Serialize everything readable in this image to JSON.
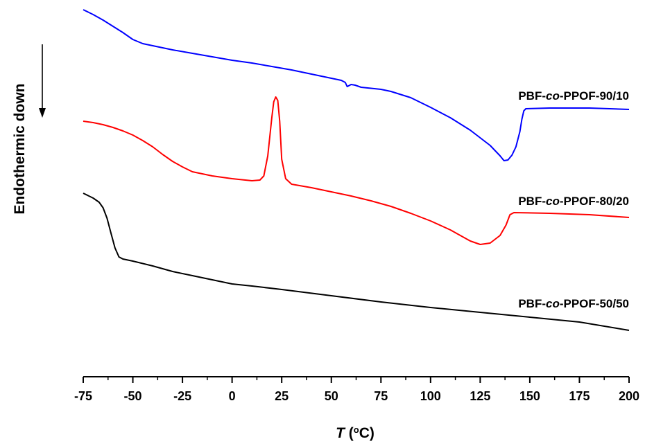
{
  "chart_data": {
    "type": "line",
    "xlabel": {
      "symbol": "T",
      "unit_open": " (",
      "unit_degree": "o",
      "unit_close": "C)"
    },
    "ylabel": "Endothermic down",
    "xlim": [
      -75,
      200
    ],
    "xticks": [
      "-75",
      "-50",
      "-25",
      "0",
      "25",
      "50",
      "75",
      "100",
      "125",
      "150",
      "175",
      "200"
    ],
    "yticks_shown": false,
    "grid": false,
    "series": [
      {
        "name": "PBF-co-PPOF-90/10",
        "label_parts": [
          "PBF-",
          "co",
          "-PPOF-90/10"
        ],
        "color": "#0000ff",
        "points": [
          [
            -75,
            14
          ],
          [
            -70,
            21
          ],
          [
            -65,
            29
          ],
          [
            -60,
            38
          ],
          [
            -55,
            47
          ],
          [
            -50,
            57
          ],
          [
            -45,
            63
          ],
          [
            -40,
            66
          ],
          [
            -30,
            72
          ],
          [
            -20,
            77
          ],
          [
            -10,
            82
          ],
          [
            0,
            87
          ],
          [
            10,
            91
          ],
          [
            20,
            96
          ],
          [
            30,
            101
          ],
          [
            40,
            107
          ],
          [
            50,
            113
          ],
          [
            55,
            116
          ],
          [
            57,
            119
          ],
          [
            58,
            125
          ],
          [
            60,
            122
          ],
          [
            62,
            123
          ],
          [
            65,
            126
          ],
          [
            75,
            129
          ],
          [
            80,
            132
          ],
          [
            90,
            141
          ],
          [
            100,
            155
          ],
          [
            110,
            170
          ],
          [
            120,
            188
          ],
          [
            130,
            210
          ],
          [
            135,
            225
          ],
          [
            137,
            232
          ],
          [
            139,
            231
          ],
          [
            141,
            224
          ],
          [
            143,
            212
          ],
          [
            145,
            190
          ],
          [
            146,
            172
          ],
          [
            147,
            160
          ],
          [
            148,
            157
          ],
          [
            160,
            156
          ],
          [
            180,
            156
          ],
          [
            200,
            158
          ]
        ]
      },
      {
        "name": "PBF-co-PPOF-80/20",
        "label_parts": [
          "PBF-",
          "co",
          "-PPOF-80/20"
        ],
        "color": "#ff0000",
        "points": [
          [
            -75,
            175
          ],
          [
            -70,
            177
          ],
          [
            -65,
            180
          ],
          [
            -60,
            184
          ],
          [
            -55,
            189
          ],
          [
            -50,
            195
          ],
          [
            -45,
            203
          ],
          [
            -40,
            212
          ],
          [
            -35,
            223
          ],
          [
            -30,
            233
          ],
          [
            -25,
            241
          ],
          [
            -20,
            248
          ],
          [
            -15,
            251
          ],
          [
            -10,
            254
          ],
          [
            0,
            258
          ],
          [
            10,
            261
          ],
          [
            14,
            260
          ],
          [
            16,
            254
          ],
          [
            18,
            225
          ],
          [
            20,
            170
          ],
          [
            21,
            147
          ],
          [
            22,
            140
          ],
          [
            23,
            145
          ],
          [
            24,
            175
          ],
          [
            25,
            230
          ],
          [
            27,
            258
          ],
          [
            30,
            266
          ],
          [
            40,
            271
          ],
          [
            50,
            277
          ],
          [
            60,
            283
          ],
          [
            70,
            290
          ],
          [
            80,
            298
          ],
          [
            90,
            308
          ],
          [
            100,
            319
          ],
          [
            110,
            332
          ],
          [
            115,
            340
          ],
          [
            120,
            348
          ],
          [
            125,
            353
          ],
          [
            130,
            351
          ],
          [
            135,
            340
          ],
          [
            138,
            325
          ],
          [
            140,
            310
          ],
          [
            142,
            307
          ],
          [
            160,
            308
          ],
          [
            180,
            310
          ],
          [
            200,
            314
          ]
        ]
      },
      {
        "name": "PBF-co-PPOF-50/50",
        "label_parts": [
          "PBF-",
          "co",
          "-PPOF-50/50"
        ],
        "color": "#000000",
        "points": [
          [
            -75,
            279
          ],
          [
            -70,
            286
          ],
          [
            -67,
            292
          ],
          [
            -65,
            300
          ],
          [
            -63,
            315
          ],
          [
            -61,
            337
          ],
          [
            -59,
            358
          ],
          [
            -57,
            371
          ],
          [
            -55,
            374
          ],
          [
            -50,
            377
          ],
          [
            -40,
            384
          ],
          [
            -30,
            392
          ],
          [
            -20,
            398
          ],
          [
            -10,
            404
          ],
          [
            0,
            410
          ],
          [
            10,
            413
          ],
          [
            25,
            418
          ],
          [
            50,
            427
          ],
          [
            75,
            436
          ],
          [
            100,
            444
          ],
          [
            125,
            451
          ],
          [
            150,
            458
          ],
          [
            175,
            465
          ],
          [
            200,
            477
          ]
        ]
      }
    ]
  }
}
